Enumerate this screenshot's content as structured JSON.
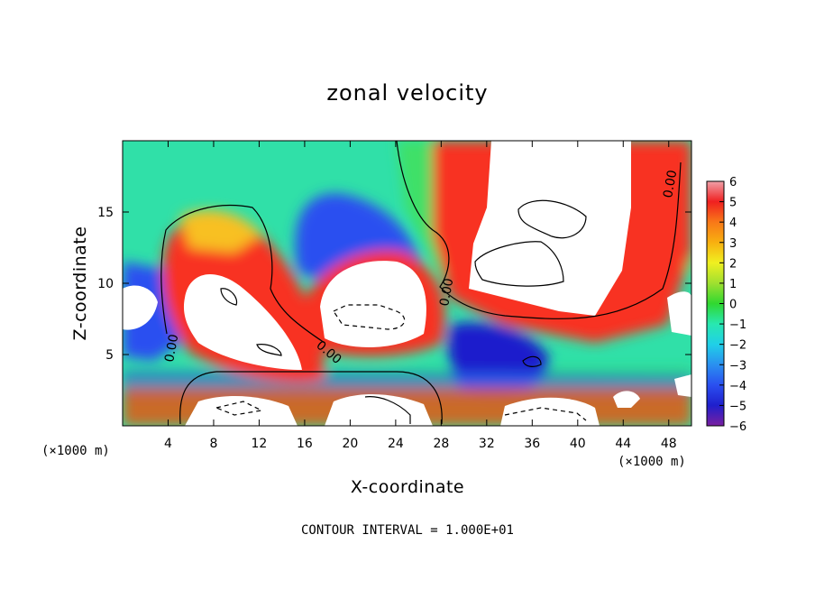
{
  "chart_data": {
    "type": "heatmap",
    "title": "zonal velocity",
    "xlabel": "X-coordinate",
    "ylabel": "Z-coordinate",
    "x_unit": "(×1000 m)",
    "z_unit": "(×1000 m)",
    "xlim": [
      0,
      50
    ],
    "ylim": [
      0,
      20
    ],
    "x_ticks": [
      4,
      8,
      12,
      16,
      20,
      24,
      28,
      32,
      36,
      40,
      44,
      48
    ],
    "y_ticks": [
      5,
      10,
      15
    ],
    "colorbar": {
      "ticks": [
        6,
        5,
        4,
        3,
        2,
        1,
        0,
        -1,
        -2,
        -3,
        -4,
        -5,
        -6
      ],
      "min": -6,
      "max": 6,
      "colors": [
        "#7a1fa0",
        "#1f1fcc",
        "#2a4ff0",
        "#2a90f0",
        "#20d0e8",
        "#28e8b0",
        "#30d830",
        "#a0e030",
        "#f0f020",
        "#f8b010",
        "#f87818",
        "#f02020",
        "#f0a0a8"
      ]
    },
    "contour_label": "0.00",
    "footnote": "CONTOUR INTERVAL = 1.000E+01",
    "regions": [
      {
        "desc": "strong positive lobe",
        "value": 7,
        "x": [
          4.5,
          14.5
        ],
        "z": [
          5.0,
          12.0
        ]
      },
      {
        "desc": "strong positive lobe",
        "value": 7,
        "x": [
          18.0,
          26.0
        ],
        "z": [
          5.5,
          11.5
        ]
      },
      {
        "desc": "strong positive lobe",
        "value": 7,
        "x": [
          31.0,
          43.0
        ],
        "z": [
          6.5,
          20.0
        ]
      },
      {
        "desc": "negative band",
        "value": -4.5,
        "x": [
          16.0,
          26.0
        ],
        "z": [
          9.0,
          15.0
        ]
      },
      {
        "desc": "negative band",
        "value": -4.5,
        "x": [
          31.0,
          38.0
        ],
        "z": [
          2.0,
          6.5
        ]
      }
    ]
  }
}
